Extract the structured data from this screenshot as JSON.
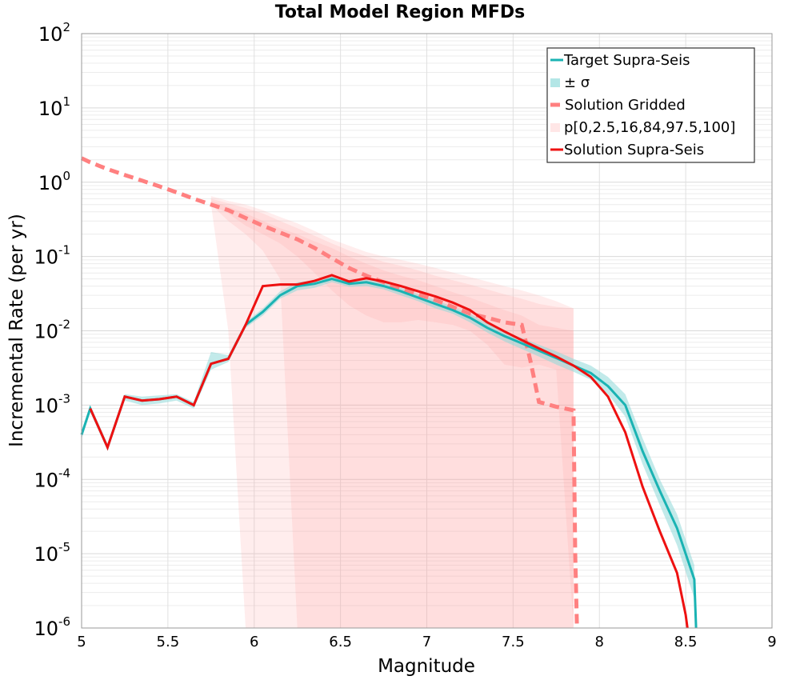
{
  "chart_data": {
    "type": "line",
    "title": "Total Model Region MFDs",
    "xlabel": "Magnitude",
    "ylabel": "Incremental Rate (per yr)",
    "xlim": [
      5,
      9
    ],
    "ylim": [
      1e-06,
      100
    ],
    "yscale": "log",
    "x_ticks": [
      "5",
      "5.5",
      "6",
      "6.5",
      "7",
      "7.5",
      "8",
      "8.5",
      "9"
    ],
    "y_ticks": [
      {
        "base": "10",
        "exp": "-6"
      },
      {
        "base": "10",
        "exp": "-5"
      },
      {
        "base": "10",
        "exp": "-4"
      },
      {
        "base": "10",
        "exp": "-3"
      },
      {
        "base": "10",
        "exp": "-2"
      },
      {
        "base": "10",
        "exp": "-1"
      },
      {
        "base": "10",
        "exp": "0"
      },
      {
        "base": "10",
        "exp": "1"
      },
      {
        "base": "10",
        "exp": "2"
      }
    ],
    "grid": true,
    "legend_position": "top-right",
    "legend": [
      {
        "label": "Target Supra-Seis",
        "type": "line",
        "color": "#1ab3b3"
      },
      {
        "label": "± σ",
        "type": "band",
        "color": "#b3e6e6"
      },
      {
        "label": "Solution Gridded",
        "type": "dashed",
        "color": "#ff8080"
      },
      {
        "label": "p[0,2.5,16,84,97.5,100]",
        "type": "band",
        "color": "#ffe6e6"
      },
      {
        "label": "Solution Supra-Seis",
        "type": "line",
        "color": "#ee1111"
      }
    ],
    "series": [
      {
        "name": "Target Supra-Seis",
        "color": "#1ab3b3",
        "x": [
          5.0,
          5.05,
          5.15,
          5.25,
          5.35,
          5.45,
          5.55,
          5.65,
          5.75,
          5.85,
          5.95,
          6.05,
          6.15,
          6.25,
          6.35,
          6.45,
          6.55,
          6.65,
          6.75,
          6.85,
          6.95,
          7.05,
          7.15,
          7.25,
          7.35,
          7.45,
          7.55,
          7.65,
          7.75,
          7.85,
          7.95,
          8.05,
          8.15,
          8.25,
          8.35,
          8.45,
          8.55,
          8.56
        ],
        "y": [
          0.0004,
          0.0009,
          0.00027,
          0.0013,
          0.00115,
          0.0012,
          0.0013,
          0.001,
          0.0036,
          0.0042,
          0.012,
          0.018,
          0.03,
          0.04,
          0.043,
          0.05,
          0.043,
          0.045,
          0.04,
          0.034,
          0.028,
          0.023,
          0.019,
          0.015,
          0.011,
          0.0085,
          0.0068,
          0.0054,
          0.0043,
          0.0034,
          0.0027,
          0.0018,
          0.001,
          0.00024,
          7e-05,
          2.2e-05,
          4.5e-06,
          1e-06
        ]
      },
      {
        "name": "± σ",
        "color": "#b3e6e6",
        "x": [
          5.0,
          5.05,
          5.15,
          5.25,
          5.35,
          5.45,
          5.55,
          5.65,
          5.75,
          5.85,
          5.95,
          6.05,
          6.15,
          6.25,
          6.35,
          6.45,
          6.55,
          6.65,
          6.75,
          6.85,
          6.95,
          7.05,
          7.15,
          7.25,
          7.35,
          7.45,
          7.55,
          7.65,
          7.75,
          7.85,
          7.95,
          8.05,
          8.15,
          8.25,
          8.35,
          8.45,
          8.55
        ],
        "lower": [
          0.00035,
          0.0008,
          0.00025,
          0.00115,
          0.001,
          0.00105,
          0.00115,
          0.0009,
          0.003,
          0.0038,
          0.011,
          0.016,
          0.027,
          0.035,
          0.038,
          0.045,
          0.039,
          0.04,
          0.036,
          0.03,
          0.025,
          0.02,
          0.017,
          0.013,
          0.0095,
          0.0072,
          0.0057,
          0.0045,
          0.0035,
          0.0028,
          0.0022,
          0.0014,
          0.0007,
          0.00016,
          4.5e-05,
          1.3e-05,
          2.5e-06
        ],
        "upper": [
          0.00045,
          0.001,
          0.0003,
          0.0014,
          0.0013,
          0.00135,
          0.0014,
          0.0011,
          0.0052,
          0.0047,
          0.013,
          0.02,
          0.034,
          0.045,
          0.048,
          0.055,
          0.048,
          0.05,
          0.045,
          0.038,
          0.031,
          0.026,
          0.021,
          0.017,
          0.0125,
          0.0098,
          0.008,
          0.0065,
          0.0053,
          0.0042,
          0.0034,
          0.0024,
          0.0014,
          0.00036,
          0.0001,
          3.4e-05,
          7e-06
        ]
      },
      {
        "name": "Solution Gridded",
        "color": "#ff8080",
        "x": [
          5.0,
          5.05,
          5.15,
          5.25,
          5.35,
          5.45,
          5.55,
          5.65,
          5.75,
          5.85,
          5.95,
          6.05,
          6.15,
          6.25,
          6.35,
          6.45,
          6.55,
          6.65,
          6.75,
          6.85,
          6.95,
          7.05,
          7.15,
          7.25,
          7.35,
          7.45,
          7.55,
          7.6,
          7.65,
          7.75,
          7.85,
          7.86,
          7.87
        ],
        "y": [
          2.1,
          1.85,
          1.5,
          1.25,
          1.05,
          0.88,
          0.73,
          0.6,
          0.5,
          0.42,
          0.33,
          0.26,
          0.21,
          0.17,
          0.13,
          0.095,
          0.07,
          0.055,
          0.045,
          0.037,
          0.031,
          0.026,
          0.021,
          0.017,
          0.015,
          0.013,
          0.012,
          0.004,
          0.0011,
          0.00095,
          0.00085,
          1e-05,
          1e-06
        ]
      },
      {
        "name": "p[0,2.5,16,84,97.5,100]",
        "color": "#ffe6e6",
        "x": [
          5.75,
          5.85,
          5.95,
          6.05,
          6.15,
          6.25,
          6.35,
          6.45,
          6.55,
          6.65,
          6.75,
          6.85,
          6.95,
          7.05,
          7.15,
          7.25,
          7.35,
          7.45,
          7.55,
          7.65,
          7.75,
          7.85
        ],
        "p0": [
          0.5,
          0.01,
          1e-06,
          1e-06,
          1e-06,
          1e-06,
          1e-06,
          1e-06,
          1e-06,
          1e-06,
          1e-06,
          1e-06,
          1e-06,
          1e-06,
          1e-06,
          1e-06,
          1e-06,
          1e-06,
          1e-06,
          1e-06,
          1e-06,
          1e-06
        ],
        "p2_5": [
          0.5,
          0.3,
          0.2,
          0.12,
          0.05,
          1e-06,
          1e-06,
          1e-06,
          1e-06,
          1e-06,
          1e-06,
          1e-06,
          1e-06,
          1e-06,
          1e-06,
          1e-06,
          1e-06,
          1e-06,
          1e-06,
          1e-06,
          1e-06,
          1e-06
        ],
        "p16": [
          0.5,
          0.38,
          0.26,
          0.2,
          0.15,
          0.1,
          0.06,
          0.035,
          0.022,
          0.016,
          0.013,
          0.013,
          0.014,
          0.013,
          0.012,
          0.01,
          0.0065,
          0.0035,
          0.0032,
          0.0035,
          0.003,
          1e-06
        ],
        "p84": [
          0.56,
          0.47,
          0.38,
          0.3,
          0.24,
          0.2,
          0.16,
          0.13,
          0.1,
          0.08,
          0.065,
          0.055,
          0.048,
          0.04,
          0.033,
          0.028,
          0.023,
          0.019,
          0.016,
          0.012,
          0.011,
          0.01
        ],
        "p97_5": [
          0.6,
          0.52,
          0.45,
          0.38,
          0.3,
          0.24,
          0.19,
          0.15,
          0.12,
          0.1,
          0.085,
          0.075,
          0.065,
          0.055,
          0.048,
          0.042,
          0.036,
          0.031,
          0.027,
          0.023,
          0.021,
          0.02
        ],
        "p100": [
          0.65,
          0.56,
          0.5,
          0.42,
          0.34,
          0.28,
          0.22,
          0.17,
          0.14,
          0.115,
          0.1,
          0.09,
          0.08,
          0.07,
          0.061,
          0.053,
          0.046,
          0.04,
          0.035,
          0.03,
          0.025,
          0.02
        ]
      },
      {
        "name": "Solution Supra-Seis",
        "color": "#ee1111",
        "x": [
          5.05,
          5.15,
          5.25,
          5.35,
          5.45,
          5.55,
          5.65,
          5.75,
          5.85,
          5.95,
          6.05,
          6.15,
          6.25,
          6.35,
          6.45,
          6.55,
          6.65,
          6.75,
          6.85,
          6.95,
          7.05,
          7.15,
          7.25,
          7.35,
          7.45,
          7.55,
          7.65,
          7.75,
          7.85,
          7.95,
          8.05,
          8.15,
          8.25,
          8.35,
          8.45,
          8.5,
          8.51
        ],
        "y": [
          0.0009,
          0.00027,
          0.0013,
          0.00115,
          0.0012,
          0.0013,
          0.001,
          0.0036,
          0.0042,
          0.012,
          0.04,
          0.042,
          0.042,
          0.047,
          0.056,
          0.046,
          0.051,
          0.046,
          0.04,
          0.034,
          0.029,
          0.024,
          0.019,
          0.013,
          0.0098,
          0.0075,
          0.0058,
          0.0045,
          0.0034,
          0.0024,
          0.0013,
          0.00043,
          8e-05,
          2e-05,
          5.5e-06,
          1.5e-06,
          1e-06
        ]
      }
    ]
  }
}
